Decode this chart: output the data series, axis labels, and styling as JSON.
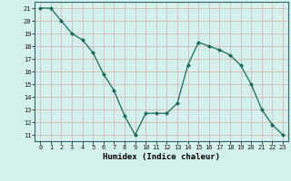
{
  "x": [
    0,
    1,
    2,
    3,
    4,
    5,
    6,
    7,
    8,
    9,
    10,
    11,
    12,
    13,
    14,
    15,
    16,
    17,
    18,
    19,
    20,
    21,
    22,
    23
  ],
  "y": [
    21,
    21,
    20,
    19,
    18.5,
    17.5,
    15.8,
    14.5,
    12.5,
    11,
    12.7,
    12.7,
    12.7,
    13.5,
    16.5,
    18.3,
    18,
    17.7,
    17.3,
    16.5,
    15,
    13,
    11.8,
    11
  ],
  "line_color": "#1a6b5a",
  "marker_color": "#1a6b5a",
  "bg_color": "#d4f0ec",
  "grid_color": "#c0deda",
  "xlabel": "Humidex (Indice chaleur)",
  "ylabel_ticks": [
    11,
    12,
    13,
    14,
    15,
    16,
    17,
    18,
    19,
    20,
    21
  ],
  "ylim": [
    10.5,
    21.5
  ],
  "xlim": [
    -0.5,
    23.5
  ]
}
